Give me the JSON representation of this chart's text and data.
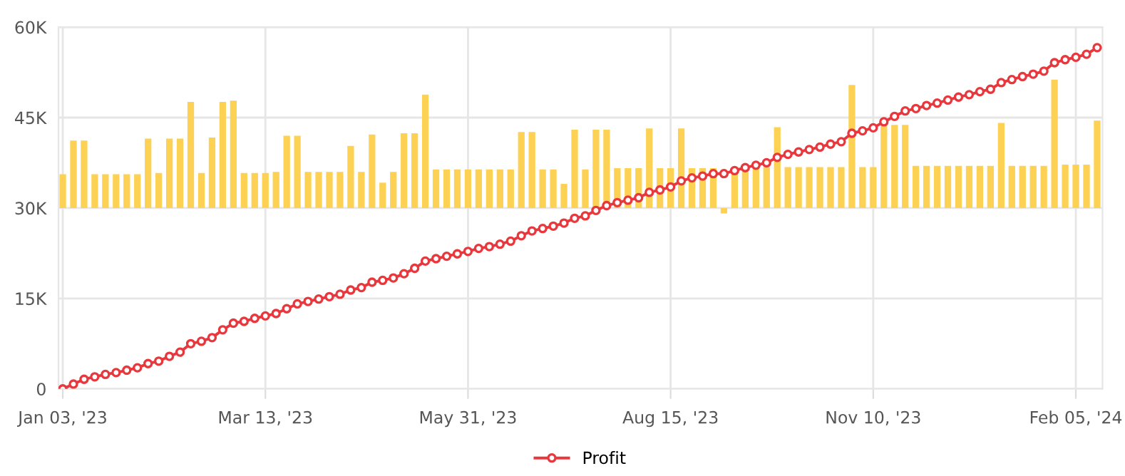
{
  "chart_data": {
    "type": "bar",
    "categories": [
      "Jan 03, '23",
      null,
      null,
      null,
      null,
      null,
      null,
      null,
      null,
      null,
      null,
      null,
      null,
      null,
      null,
      null,
      null,
      null,
      null,
      "Mar 13, '23",
      null,
      null,
      null,
      null,
      null,
      null,
      null,
      null,
      null,
      null,
      null,
      null,
      null,
      null,
      null,
      null,
      null,
      null,
      "May 31, '23",
      null,
      null,
      null,
      null,
      null,
      null,
      null,
      null,
      null,
      null,
      null,
      null,
      null,
      null,
      null,
      null,
      null,
      null,
      "Aug 15, '23",
      null,
      null,
      null,
      null,
      null,
      null,
      null,
      null,
      null,
      null,
      null,
      null,
      null,
      null,
      null,
      null,
      null,
      null,
      "Nov 10, '23",
      null,
      null,
      null,
      null,
      null,
      null,
      null,
      null,
      null,
      null,
      null,
      null,
      null,
      null,
      null,
      null,
      null,
      null,
      "Feb 05, '24",
      null,
      null
    ],
    "series": [
      {
        "color": "#fdd153",
        "base": [
          30,
          30,
          30,
          30,
          30,
          30,
          30,
          30,
          30,
          30,
          30,
          30,
          30,
          30,
          30,
          30,
          30,
          30,
          30,
          30,
          30,
          30,
          30,
          30,
          30,
          30,
          30,
          30,
          30,
          30,
          30,
          30,
          30,
          30,
          30,
          30,
          30,
          30,
          30,
          30,
          30,
          30,
          30,
          30,
          30,
          30,
          30,
          30,
          30,
          30,
          30,
          30,
          30,
          30,
          30,
          30,
          30,
          30,
          30,
          30,
          30,
          30,
          30,
          30,
          30,
          30,
          30,
          30,
          30,
          30,
          30,
          30,
          30,
          30,
          30,
          30,
          30,
          30,
          30,
          30,
          30,
          30,
          30,
          30,
          30,
          30,
          30,
          30,
          30,
          30,
          30,
          30,
          30,
          30,
          30,
          30,
          30,
          30
        ],
        "values": [
          5.6,
          11.2,
          11.2,
          5.6,
          5.6,
          5.6,
          5.6,
          5.6,
          11.5,
          5.8,
          11.5,
          11.5,
          17.6,
          5.8,
          11.7,
          17.6,
          17.8,
          5.8,
          5.8,
          5.8,
          6.0,
          12.0,
          12.0,
          6.0,
          6.0,
          6.0,
          6.0,
          10.3,
          6.0,
          12.2,
          4.2,
          6.0,
          12.4,
          12.4,
          18.8,
          6.4,
          6.4,
          6.4,
          6.4,
          6.4,
          6.4,
          6.4,
          6.4,
          12.6,
          12.6,
          6.4,
          6.4,
          4.0,
          13.0,
          6.4,
          13.0,
          13.0,
          6.6,
          6.6,
          6.6,
          13.2,
          6.6,
          6.6,
          13.2,
          6.6,
          6.6,
          6.6,
          -0.9,
          6.6,
          6.6,
          6.6,
          6.8,
          13.4,
          6.8,
          6.8,
          6.8,
          6.8,
          6.8,
          6.8,
          20.4,
          6.8,
          6.8,
          13.8,
          13.8,
          13.8,
          7.0,
          7.0,
          7.0,
          7.0,
          7.0,
          7.0,
          7.0,
          7.0,
          14.1,
          7.0,
          7.0,
          7.0,
          7.0,
          21.3,
          7.2,
          7.2,
          7.2,
          14.5
        ]
      },
      {
        "type": "line",
        "name": "Profit",
        "color": "#e8383d",
        "marker": "circle",
        "line_style": "solid",
        "values": [
          0,
          0.8,
          1.6,
          2.0,
          2.4,
          2.7,
          3.1,
          3.5,
          4.2,
          4.6,
          5.4,
          6.1,
          7.5,
          7.9,
          8.5,
          9.8,
          10.9,
          11.2,
          11.7,
          12.1,
          12.5,
          13.3,
          14.1,
          14.5,
          14.9,
          15.3,
          15.7,
          16.4,
          16.8,
          17.7,
          18.0,
          18.4,
          19.1,
          20.0,
          21.2,
          21.6,
          22.0,
          22.4,
          22.8,
          23.3,
          23.6,
          24.0,
          24.5,
          25.4,
          26.2,
          26.6,
          27.0,
          27.5,
          28.3,
          28.7,
          29.6,
          30.4,
          30.9,
          31.3,
          31.7,
          32.6,
          33.0,
          33.5,
          34.5,
          35.0,
          35.3,
          35.7,
          35.7,
          36.2,
          36.7,
          37.1,
          37.5,
          38.4,
          38.9,
          39.3,
          39.7,
          40.1,
          40.6,
          41.0,
          42.4,
          42.8,
          43.3,
          44.3,
          45.2,
          46.1,
          46.5,
          47.0,
          47.4,
          47.9,
          48.4,
          48.8,
          49.3,
          49.7,
          50.8,
          51.3,
          51.8,
          52.2,
          52.7,
          54.1,
          54.6,
          55.0,
          55.5,
          56.6
        ]
      }
    ],
    "ylim": [
      0,
      60
    ],
    "yticks": [
      0,
      {
        "value": 15,
        "label": "15K"
      },
      {
        "value": 30,
        "label": "30K"
      },
      {
        "value": 45,
        "label": "45K"
      },
      {
        "value": 60,
        "label": "60K"
      }
    ],
    "grid": true,
    "legend": "bottom"
  }
}
